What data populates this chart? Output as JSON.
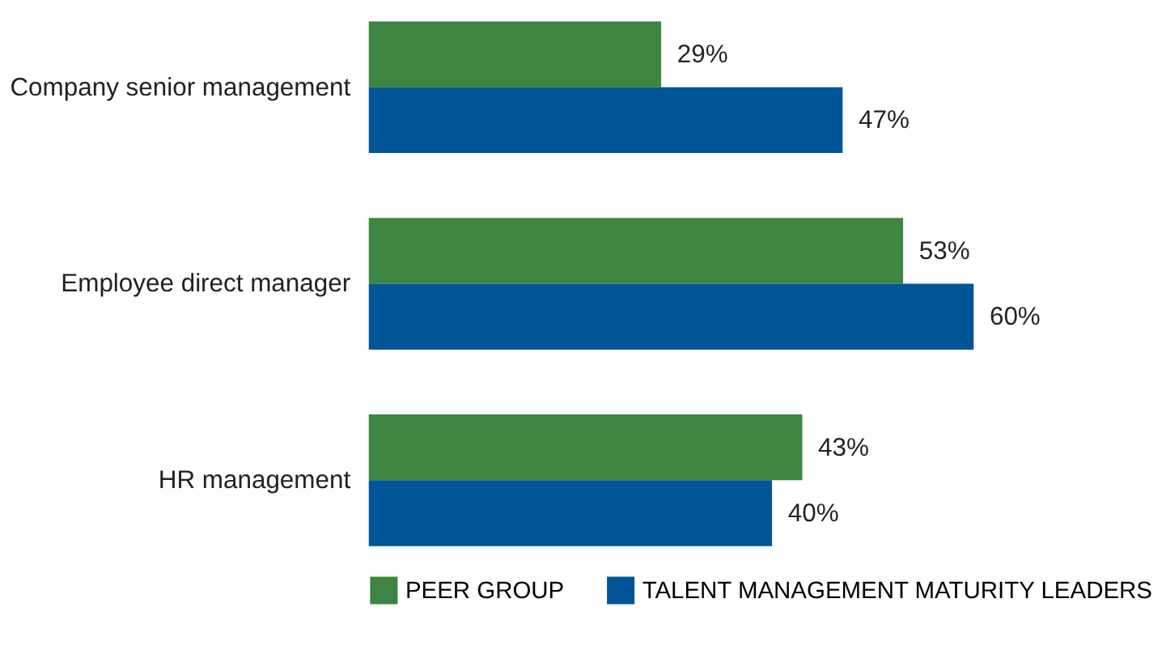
{
  "chart_data": {
    "type": "bar",
    "orientation": "horizontal",
    "categories": [
      "Company senior management",
      "Employee direct manager",
      "HR management"
    ],
    "series": [
      {
        "name": "PEER GROUP",
        "color": "#3d8541",
        "values": [
          29,
          53,
          43
        ],
        "value_labels": [
          "29%",
          "53%",
          "43%"
        ]
      },
      {
        "name": "TALENT MANAGEMENT MATURITY LEADERS",
        "color": "#005596",
        "values": [
          47,
          60,
          40
        ],
        "value_labels": [
          "47%",
          "60%",
          "40%"
        ]
      }
    ],
    "legend": "bottom",
    "grid": false
  }
}
